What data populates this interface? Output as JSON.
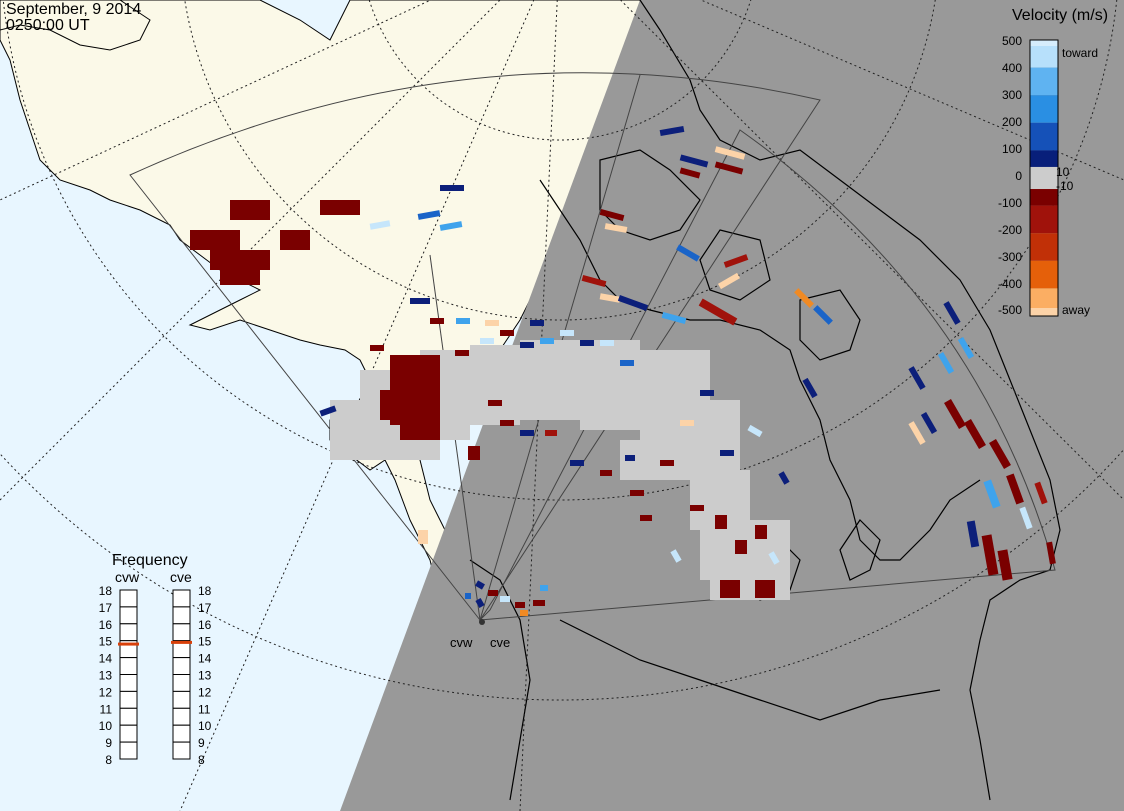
{
  "header": {
    "date": "September, 9 2014",
    "time": "0250:00 UT"
  },
  "legend": {
    "title": "Velocity (m/s)",
    "scale": [
      {
        "label": "500",
        "color": "#c6e6fb"
      },
      {
        "label": "400",
        "color": "#7fc4f5"
      },
      {
        "label": "300",
        "color": "#2f9ae8"
      },
      {
        "label": "200",
        "color": "#1a64c8"
      },
      {
        "label": "100",
        "color": "#0c2d96"
      },
      {
        "label": "10",
        "color": "#05105f"
      },
      {
        "label": "0",
        "color": "#cccccc"
      },
      {
        "label": "-10",
        "color": "#6e0000"
      },
      {
        "label": "-100",
        "color": "#950b0b"
      },
      {
        "label": "-200",
        "color": "#b62306"
      },
      {
        "label": "-300",
        "color": "#dc4a06"
      },
      {
        "label": "-400",
        "color": "#f88918"
      },
      {
        "label": "-500",
        "color": "#fcd3a8"
      }
    ],
    "toward_label": "toward",
    "away_label": "away"
  },
  "frequency": {
    "title": "Frequency",
    "radars": [
      {
        "name": "cvw",
        "value": 14.8
      },
      {
        "name": "cve",
        "value": 14.9
      }
    ],
    "ticks": [
      "18",
      "17",
      "16",
      "15",
      "14",
      "13",
      "12",
      "11",
      "10",
      "9",
      "8"
    ]
  },
  "radar_sites": [
    {
      "name": "cvw"
    },
    {
      "name": "cve"
    }
  ],
  "colors": {
    "ocean": "#e8f6ff",
    "land_day": "#fbf9e8",
    "night": "#999999",
    "ground_scatter": "#cccccc",
    "scatter_dark": "#7a0000"
  }
}
